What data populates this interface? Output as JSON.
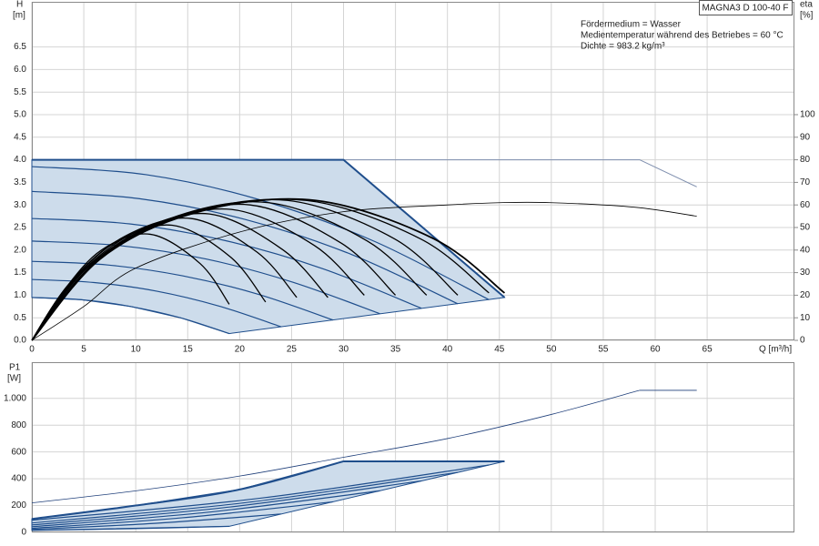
{
  "chart_data": [
    {
      "type": "line",
      "title": "MAGNA3 D 100-40 F",
      "annotations": [
        "Fördermedium = Wasser",
        "Medientemperatur während des Betriebes = 60 °C",
        "Dichte = 983.2 kg/m³"
      ],
      "ylabel": "H",
      "yunit": "[m]",
      "y2label": "eta",
      "y2unit": "[%]",
      "xlabel": "Q [m³/h]",
      "xlim": [
        0,
        73.4
      ],
      "xticks": [
        0,
        5,
        10,
        15,
        20,
        25,
        30,
        35,
        40,
        45,
        50,
        55,
        60,
        65
      ],
      "ylim": [
        0,
        7.5
      ],
      "yticks": [
        {
          "value": 0,
          "label": "0.0"
        },
        0.5,
        {
          "value": 1,
          "label": "1.0"
        },
        1.5,
        {
          "value": 2,
          "label": "2.0"
        },
        2.5,
        {
          "value": 3,
          "label": "3.0"
        },
        3.5,
        {
          "value": 4,
          "label": "4.0"
        },
        4.5,
        {
          "value": 5,
          "label": "5.0"
        },
        5.5,
        {
          "value": 6,
          "label": "6.0"
        },
        6.5
      ],
      "y2lim": [
        0,
        150
      ],
      "y2ticks": [
        0,
        10,
        20,
        30,
        40,
        50,
        60,
        70,
        80,
        90,
        100
      ],
      "grid": true,
      "series": [
        {
          "color": "#1f4e8c",
          "fill": "#cddceb",
          "linewidth": 1,
          "x": [
            0,
            30,
            45.5,
            19,
            14.3,
            9.5,
            4.8,
            0
          ],
          "values": [
            4,
            4,
            0.95,
            0.15,
            0.5,
            0.75,
            0.9,
            0.95
          ]
        },
        {
          "color": "#7f8fae",
          "linewidth": 1,
          "x": [
            0,
            58.5,
            64
          ],
          "values": [
            4,
            4,
            3.4
          ]
        },
        {
          "color": "#1f4e8c",
          "linewidth": 2,
          "x": [
            0,
            30,
            45.5
          ],
          "values": [
            4,
            4,
            0.95
          ]
        },
        {
          "color": "#1f4e8c",
          "linewidth": 1.2,
          "smooth": true,
          "x": [
            0,
            11,
            22,
            33,
            44
          ],
          "values": [
            3.85,
            3.67,
            3.11,
            2.19,
            0.9
          ]
        },
        {
          "color": "#1f4e8c",
          "linewidth": 1.2,
          "smooth": true,
          "x": [
            0,
            10.3,
            20.5,
            30.8,
            41
          ],
          "values": [
            3.3,
            3.14,
            2.68,
            1.9,
            0.81
          ]
        },
        {
          "color": "#1f4e8c",
          "linewidth": 1.2,
          "smooth": true,
          "x": [
            0,
            9.4,
            18.8,
            28.1,
            37.5
          ],
          "values": [
            2.7,
            2.58,
            2.2,
            1.58,
            0.71
          ]
        },
        {
          "color": "#1f4e8c",
          "linewidth": 1.2,
          "smooth": true,
          "x": [
            0,
            8.4,
            16.8,
            25.1,
            33.5
          ],
          "values": [
            2.2,
            2.1,
            1.8,
            1.29,
            0.59
          ]
        },
        {
          "color": "#1f4e8c",
          "linewidth": 1.2,
          "smooth": true,
          "x": [
            0,
            7.3,
            14.5,
            21.8,
            29
          ],
          "values": [
            1.75,
            1.67,
            1.43,
            1.02,
            0.45
          ]
        },
        {
          "color": "#1f4e8c",
          "linewidth": 1.2,
          "smooth": true,
          "x": [
            0,
            6,
            12,
            18,
            24
          ],
          "values": [
            1.35,
            1.28,
            1.09,
            0.76,
            0.3
          ]
        },
        {
          "color": "#1f4e8c",
          "linewidth": 1.2,
          "smooth": true,
          "x": [
            0,
            4.8,
            9.5,
            14.3,
            19
          ],
          "values": [
            0.95,
            0.9,
            0.75,
            0.5,
            0.15
          ]
        },
        {
          "color": "#000000",
          "linewidth": 0.8,
          "smooth": true,
          "axis": "y2",
          "x": [
            0,
            5,
            10,
            20,
            30,
            40,
            45,
            50,
            58,
            64
          ],
          "values": [
            0,
            15,
            32,
            48,
            57,
            60,
            61,
            61,
            59,
            55
          ]
        },
        {
          "color": "#000000",
          "linewidth": 1.3,
          "smooth": true,
          "axis": "y2",
          "x": [
            0,
            2.9,
            6.7,
            11.4,
            16.2,
            19
          ],
          "values": [
            0,
            21,
            40,
            47,
            34,
            16
          ]
        },
        {
          "color": "#000000",
          "linewidth": 1.3,
          "smooth": true,
          "axis": "y2",
          "x": [
            0,
            3.4,
            7.9,
            13.5,
            19.1,
            22.5
          ],
          "values": [
            0,
            24,
            43,
            51,
            37,
            17
          ]
        },
        {
          "color": "#000000",
          "linewidth": 1.3,
          "smooth": true,
          "axis": "y2",
          "x": [
            0,
            3.8,
            8.9,
            15.3,
            21.7,
            25.5
          ],
          "values": [
            0,
            26,
            46,
            54,
            39,
            19
          ]
        },
        {
          "color": "#000000",
          "linewidth": 1.3,
          "smooth": true,
          "axis": "y2",
          "x": [
            0,
            4.3,
            10,
            17.1,
            24.2,
            28.5
          ],
          "values": [
            0,
            28,
            48,
            56,
            40,
            19
          ]
        },
        {
          "color": "#000000",
          "linewidth": 1.3,
          "smooth": true,
          "axis": "y2",
          "x": [
            0,
            4.8,
            11.2,
            19.2,
            27.2,
            32
          ],
          "values": [
            0,
            30,
            50,
            58,
            42,
            20
          ]
        },
        {
          "color": "#000000",
          "linewidth": 1.3,
          "smooth": true,
          "axis": "y2",
          "x": [
            0,
            5.3,
            12.3,
            21,
            29.8,
            35
          ],
          "values": [
            0,
            32,
            52,
            60,
            43,
            20
          ]
        },
        {
          "color": "#000000",
          "linewidth": 1.3,
          "smooth": true,
          "axis": "y2",
          "x": [
            0,
            5.7,
            13.3,
            22.8,
            32.3,
            38
          ],
          "values": [
            0,
            33,
            54,
            61,
            44,
            20
          ]
        },
        {
          "color": "#000000",
          "linewidth": 1.3,
          "smooth": true,
          "axis": "y2",
          "x": [
            0,
            6.2,
            14.4,
            24.6,
            34.9,
            41
          ],
          "values": [
            0,
            35,
            55,
            62,
            45,
            20
          ]
        },
        {
          "color": "#000000",
          "linewidth": 1.3,
          "smooth": true,
          "axis": "y2",
          "x": [
            0,
            6.6,
            15.4,
            26.4,
            37.4,
            44
          ],
          "values": [
            0,
            36,
            56,
            62,
            45,
            21
          ]
        },
        {
          "color": "#000000",
          "linewidth": 1.8,
          "smooth": true,
          "axis": "y2",
          "x": [
            0,
            6.8,
            15.9,
            27.3,
            38.7,
            45.5
          ],
          "values": [
            0,
            37,
            57,
            62,
            45,
            21
          ]
        }
      ]
    },
    {
      "type": "line",
      "ylabel": "P1",
      "yunit": "[W]",
      "xlim": [
        0,
        73.4
      ],
      "xticks": [
        0,
        5,
        10,
        15,
        20,
        25,
        30,
        35,
        40,
        45,
        50,
        55,
        60,
        65
      ],
      "ylim": [
        0,
        1270
      ],
      "yticks": [
        0,
        200,
        400,
        600,
        800,
        {
          "value": 1000,
          "label": "1.000"
        }
      ],
      "grid": true,
      "series": [
        {
          "color": "#1f4e8c",
          "fill": "#cddceb",
          "linewidth": 1,
          "x": [
            0,
            10,
            20,
            30,
            45.5,
            19,
            0
          ],
          "values": [
            100,
            200,
            320,
            530,
            530,
            45,
            15
          ]
        },
        {
          "color": "#1f3f7a",
          "linewidth": 0.8,
          "smooth": true,
          "x": [
            0,
            10,
            20,
            30,
            40,
            50,
            58.5
          ],
          "values": [
            220,
            310,
            420,
            560,
            700,
            880,
            1060
          ]
        },
        {
          "color": "#1f3f7a",
          "linewidth": 0.8,
          "x": [
            58.5,
            64
          ],
          "values": [
            1060,
            1060
          ]
        },
        {
          "color": "#1f4e8c",
          "linewidth": 2,
          "smooth": true,
          "x": [
            0,
            10,
            20,
            30
          ],
          "values": [
            100,
            200,
            320,
            530
          ]
        },
        {
          "color": "#1f4e8c",
          "linewidth": 2,
          "x": [
            30,
            45.5
          ],
          "values": [
            530,
            530
          ]
        },
        {
          "color": "#1f4e8c",
          "linewidth": 1.2,
          "smooth": true,
          "x": [
            0,
            22,
            44
          ],
          "values": [
            90,
            255,
            503
          ]
        },
        {
          "color": "#1f4e8c",
          "linewidth": 1.2,
          "smooth": true,
          "x": [
            0,
            20.5,
            41
          ],
          "values": [
            70,
            221,
            448
          ]
        },
        {
          "color": "#1f4e8c",
          "linewidth": 1.2,
          "smooth": true,
          "x": [
            0,
            18.8,
            37.5
          ],
          "values": [
            55,
            187,
            384
          ]
        },
        {
          "color": "#1f4e8c",
          "linewidth": 1.2,
          "smooth": true,
          "x": [
            0,
            16.8,
            33.5
          ],
          "values": [
            42,
            149,
            310
          ]
        },
        {
          "color": "#1f4e8c",
          "linewidth": 1.2,
          "smooth": true,
          "x": [
            0,
            14.5,
            29
          ],
          "values": [
            30,
            109,
            228
          ]
        },
        {
          "color": "#1f4e8c",
          "linewidth": 1.2,
          "smooth": true,
          "x": [
            0,
            12,
            24
          ],
          "values": [
            22,
            68,
            137
          ]
        },
        {
          "color": "#1f4e8c",
          "linewidth": 1.2,
          "smooth": true,
          "x": [
            0,
            9.5,
            19
          ],
          "values": [
            15,
            27,
            45
          ]
        }
      ]
    }
  ]
}
